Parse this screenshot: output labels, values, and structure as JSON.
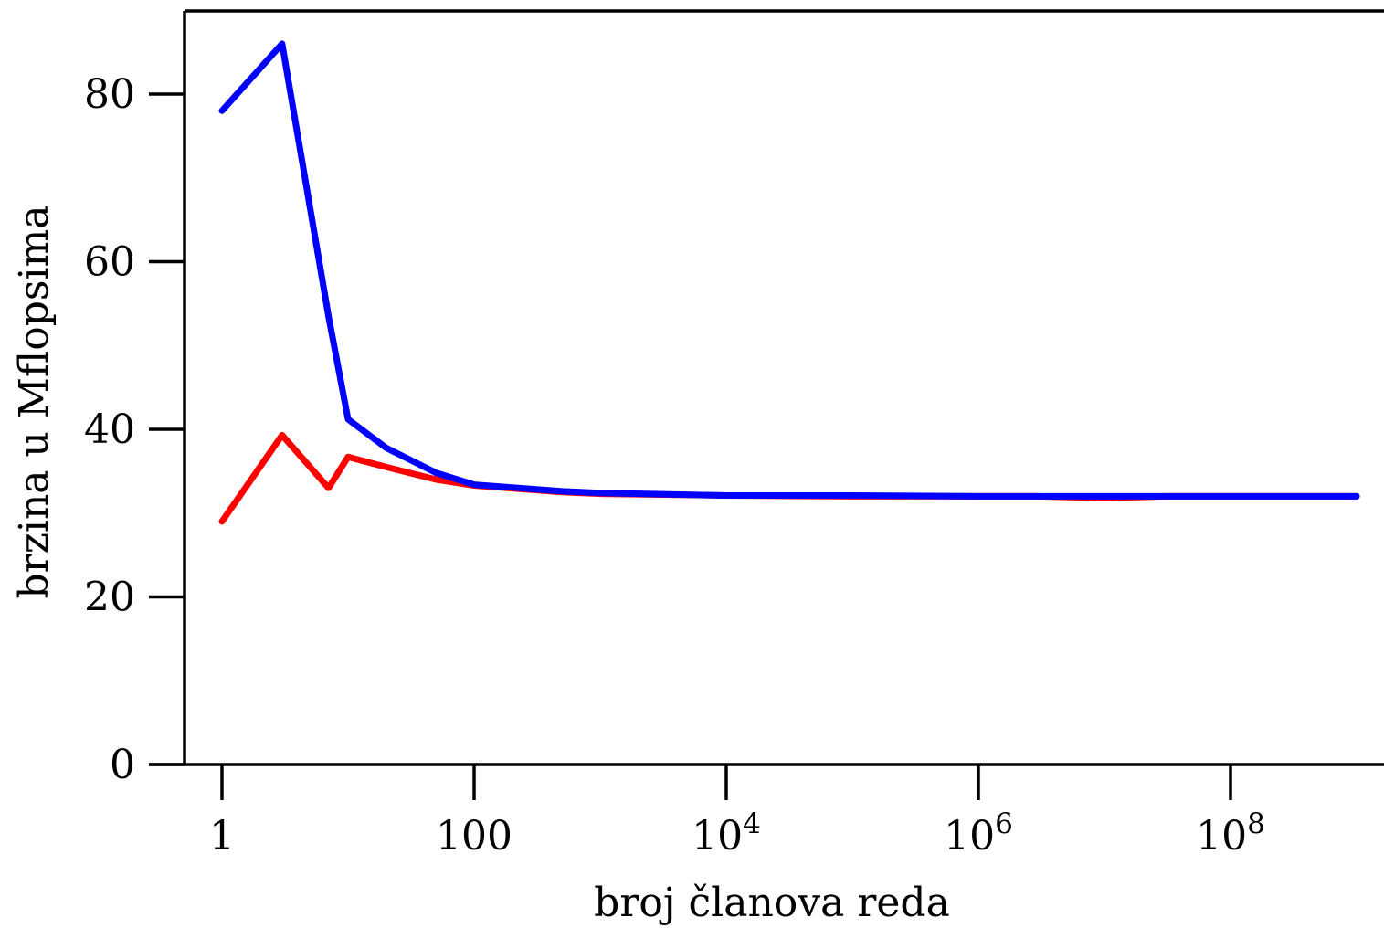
{
  "chart_data": {
    "type": "line",
    "xlabel": "broj članova reda",
    "ylabel": "brzina u Mflopsima",
    "x_scale": "log10",
    "xlim": [
      1,
      1000000000
    ],
    "ylim": [
      0,
      90
    ],
    "grid": false,
    "legend": "none",
    "x_ticks": [
      {
        "value": 1,
        "base": "1",
        "exp": ""
      },
      {
        "value": 100,
        "base": "100",
        "exp": ""
      },
      {
        "value": 10000,
        "base": "10",
        "exp": "4"
      },
      {
        "value": 1000000,
        "base": "10",
        "exp": "6"
      },
      {
        "value": 100000000,
        "base": "10",
        "exp": "8"
      }
    ],
    "y_ticks": [
      0,
      20,
      40,
      60,
      80
    ],
    "series": [
      {
        "color": "#ff0000",
        "points": [
          [
            1,
            29.0
          ],
          [
            3,
            39.3
          ],
          [
            7,
            33.0
          ],
          [
            10,
            36.7
          ],
          [
            20,
            35.5
          ],
          [
            50,
            34.0
          ],
          [
            100,
            33.3
          ],
          [
            500,
            32.5
          ],
          [
            1000,
            32.3
          ],
          [
            10000,
            32.1
          ],
          [
            100000,
            32.0
          ],
          [
            1000000,
            32.0
          ],
          [
            3000000,
            32.0
          ],
          [
            10000000,
            31.8
          ],
          [
            30000000,
            32.0
          ],
          [
            1000000000,
            32.0
          ]
        ]
      },
      {
        "color": "#0000ff",
        "points": [
          [
            1,
            78.0
          ],
          [
            3,
            86.0
          ],
          [
            7,
            53.5
          ],
          [
            10,
            41.2
          ],
          [
            20,
            37.8
          ],
          [
            50,
            34.8
          ],
          [
            100,
            33.4
          ],
          [
            500,
            32.6
          ],
          [
            1000,
            32.4
          ],
          [
            10000,
            32.1
          ],
          [
            100000,
            32.1
          ],
          [
            1000000,
            32.0
          ],
          [
            10000000,
            32.0
          ],
          [
            100000000,
            32.0
          ],
          [
            1000000000,
            32.0
          ]
        ]
      }
    ]
  }
}
